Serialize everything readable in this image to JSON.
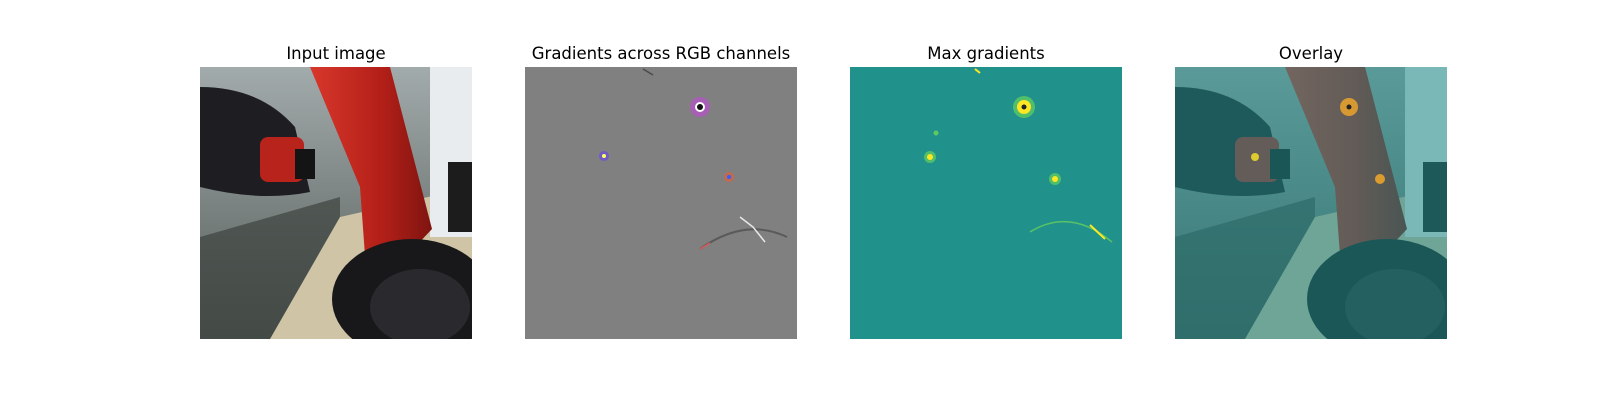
{
  "figure": {
    "panels": [
      {
        "title": "Input image"
      },
      {
        "title": "Gradients across RGB channels"
      },
      {
        "title": "Max gradients"
      },
      {
        "title": "Overlay"
      }
    ]
  },
  "colors": {
    "robot_red": "#b8231c",
    "robot_black": "#1e1e22",
    "floor": "#cfc4a6",
    "wall": "#8e9a9c",
    "gradient_background": "#808080",
    "max_gradient_background": "#21918c",
    "hotspot": "#fde725",
    "overlay_tint": "#1f8c8a"
  }
}
